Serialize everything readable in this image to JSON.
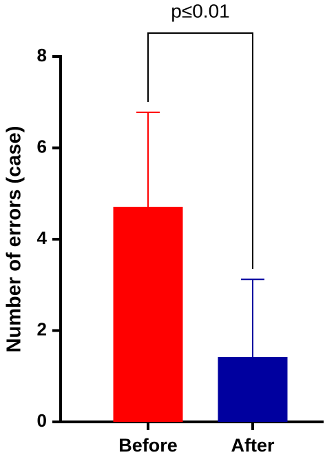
{
  "chart_data": {
    "type": "bar",
    "y_label": "Number of errors (case)",
    "categories": [
      "Before",
      "After"
    ],
    "values": [
      4.71,
      1.42
    ],
    "errors": [
      2.07,
      1.7
    ],
    "colors": [
      "#ff0000",
      "#00009f"
    ],
    "ylim": [
      0,
      8
    ],
    "yticks": [
      0,
      2,
      4,
      6,
      8
    ],
    "annotation": "p≤0.01"
  }
}
